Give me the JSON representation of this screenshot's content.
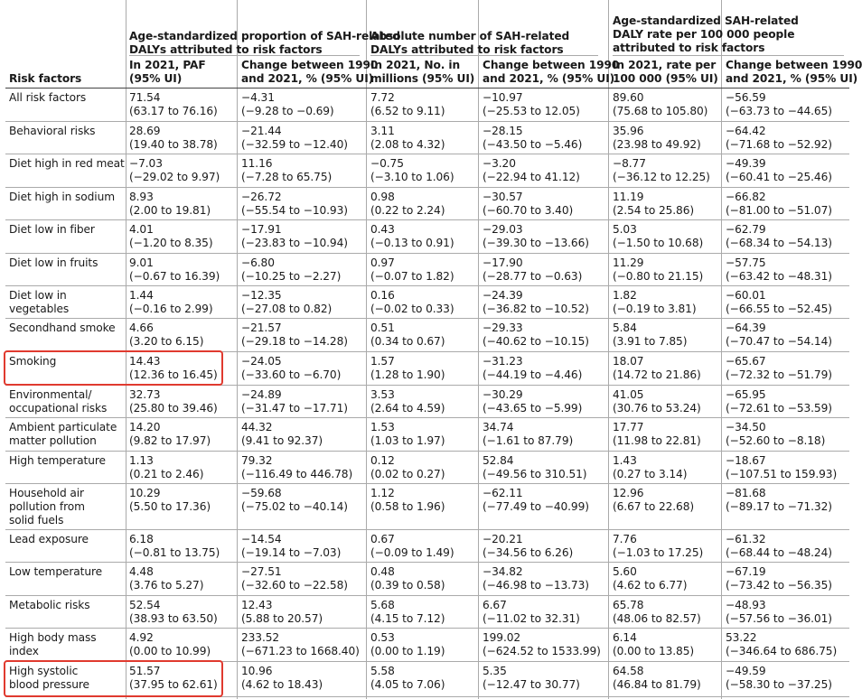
{
  "header": {
    "risk_factors": "Risk factors",
    "groups": [
      {
        "line1": "Age-standardized proportion of SAH-related",
        "line2": "DALYs attributed to risk factors",
        "line3": ""
      },
      {
        "line1": "Absolute number of SAH-related",
        "line2": "DALYs attributed to risk factors",
        "line3": ""
      },
      {
        "line1": "Age-standardized SAH-related",
        "line2": "DALY rate per 100 000 people",
        "line3": "attributed to risk factors"
      }
    ],
    "subs": [
      [
        "In 2021, PAF",
        "(95% UI)"
      ],
      [
        "Change between 1990",
        "and 2021, % (95% UI)"
      ],
      [
        "In 2021, No. in",
        "millions (95% UI)"
      ],
      [
        "Change between 1990",
        "and 2021, % (95% UI)"
      ],
      [
        "In 2021, rate per",
        "100 000 (95% UI)"
      ],
      [
        "Change between 1990",
        "and 2021, % (95% UI)"
      ]
    ]
  },
  "rows": [
    {
      "name": [
        "All risk factors"
      ],
      "cells": [
        [
          "71.54",
          "(63.17 to 76.16)"
        ],
        [
          "−4.31",
          "(−9.28 to −0.69)"
        ],
        [
          "7.72",
          "(6.52 to 9.11)"
        ],
        [
          "−10.97",
          "(−25.53 to 12.05)"
        ],
        [
          "89.60",
          "(75.68 to 105.80)"
        ],
        [
          "−56.59",
          "(−63.73 to −44.65)"
        ]
      ]
    },
    {
      "name": [
        "Behavioral risks"
      ],
      "cells": [
        [
          "28.69",
          "(19.40 to 38.78)"
        ],
        [
          "−21.44",
          "(−32.59 to −12.40)"
        ],
        [
          "3.11",
          "(2.08 to 4.32)"
        ],
        [
          "−28.15",
          "(−43.50 to −5.46)"
        ],
        [
          "35.96",
          "(23.98 to 49.92)"
        ],
        [
          "−64.42",
          "(−71.68 to −52.92)"
        ]
      ]
    },
    {
      "name": [
        "Diet high in red meat"
      ],
      "cells": [
        [
          "−7.03",
          "(−29.02 to 9.97)"
        ],
        [
          "11.16",
          "(−7.28 to 65.75)"
        ],
        [
          "−0.75",
          "(−3.10 to 1.06)"
        ],
        [
          "−3.20",
          "(−22.94 to 41.12)"
        ],
        [
          "−8.77",
          "(−36.12 to 12.25)"
        ],
        [
          "−49.39",
          "(−60.41 to −25.46)"
        ]
      ]
    },
    {
      "name": [
        "Diet high in sodium"
      ],
      "cells": [
        [
          "8.93",
          "(2.00 to 19.81)"
        ],
        [
          "−26.72",
          "(−55.54 to −10.93)"
        ],
        [
          "0.98",
          "(0.22 to 2.24)"
        ],
        [
          "−30.57",
          "(−60.70 to 3.40)"
        ],
        [
          "11.19",
          "(2.54 to 25.86)"
        ],
        [
          "−66.82",
          "(−81.00 to −51.07)"
        ]
      ]
    },
    {
      "name": [
        "Diet low in fiber"
      ],
      "cells": [
        [
          "4.01",
          "(−1.20 to 8.35)"
        ],
        [
          "−17.91",
          "(−23.83 to −10.94)"
        ],
        [
          "0.43",
          "(−0.13 to 0.91)"
        ],
        [
          "−29.03",
          "(−39.30 to −13.66)"
        ],
        [
          "5.03",
          "(−1.50 to 10.68)"
        ],
        [
          "−62.79",
          "(−68.34 to −54.13)"
        ]
      ]
    },
    {
      "name": [
        "Diet low in fruits"
      ],
      "cells": [
        [
          "9.01",
          "(−0.67 to 16.39)"
        ],
        [
          "−6.80",
          "(−10.25 to −2.27)"
        ],
        [
          "0.97",
          "(−0.07 to 1.82)"
        ],
        [
          "−17.90",
          "(−28.77 to −0.63)"
        ],
        [
          "11.29",
          "(−0.80 to 21.15)"
        ],
        [
          "−57.75",
          "(−63.42 to −48.31)"
        ]
      ]
    },
    {
      "name": [
        "Diet low in",
        "vegetables"
      ],
      "cells": [
        [
          "1.44",
          "(−0.16 to 2.99)"
        ],
        [
          "−12.35",
          "(−27.08 to 0.82)"
        ],
        [
          "0.16",
          "(−0.02 to 0.33)"
        ],
        [
          "−24.39",
          "(−36.82 to −10.52)"
        ],
        [
          "1.82",
          "(−0.19 to 3.81)"
        ],
        [
          "−60.01",
          "(−66.55 to −52.45)"
        ]
      ]
    },
    {
      "name": [
        "Secondhand smoke"
      ],
      "cells": [
        [
          "4.66",
          "(3.20 to 6.15)"
        ],
        [
          "−21.57",
          "(−29.18 to −14.28)"
        ],
        [
          "0.51",
          "(0.34 to 0.67)"
        ],
        [
          "−29.33",
          "(−40.62 to −10.15)"
        ],
        [
          "5.84",
          "(3.91 to 7.85)"
        ],
        [
          "−64.39",
          "(−70.47 to −54.14)"
        ]
      ]
    },
    {
      "name": [
        "Smoking"
      ],
      "highlight": true,
      "cells": [
        [
          "14.43",
          "(12.36 to 16.45)"
        ],
        [
          "−24.05",
          "(−33.60 to −6.70)"
        ],
        [
          "1.57",
          "(1.28 to 1.90)"
        ],
        [
          "−31.23",
          "(−44.19 to −4.46)"
        ],
        [
          "18.07",
          "(14.72 to 21.86)"
        ],
        [
          "−65.67",
          "(−72.32 to −51.79)"
        ]
      ]
    },
    {
      "name": [
        "Environmental/",
        "occupational risks"
      ],
      "cells": [
        [
          "32.73",
          "(25.80 to 39.46)"
        ],
        [
          "−24.89",
          "(−31.47 to −17.71)"
        ],
        [
          "3.53",
          "(2.64 to 4.59)"
        ],
        [
          "−30.29",
          "(−43.65 to −5.99)"
        ],
        [
          "41.05",
          "(30.76 to 53.24)"
        ],
        [
          "−65.95",
          "(−72.61 to −53.59)"
        ]
      ]
    },
    {
      "name": [
        "Ambient particulate",
        "matter pollution"
      ],
      "cells": [
        [
          "14.20",
          "(9.82 to 17.97)"
        ],
        [
          "44.32",
          "(9.41 to 92.37)"
        ],
        [
          "1.53",
          "(1.03 to 1.97)"
        ],
        [
          "34.74",
          "(−1.61 to 87.79)"
        ],
        [
          "17.77",
          "(11.98 to 22.81)"
        ],
        [
          "−34.50",
          "(−52.60 to −8.18)"
        ]
      ]
    },
    {
      "name": [
        "High temperature"
      ],
      "cells": [
        [
          "1.13",
          "(0.21 to 2.46)"
        ],
        [
          "79.32",
          "(−116.49 to 446.78)"
        ],
        [
          "0.12",
          "(0.02 to 0.27)"
        ],
        [
          "52.84",
          "(−49.56 to 310.51)"
        ],
        [
          "1.43",
          "(0.27 to 3.14)"
        ],
        [
          "−18.67",
          "(−107.51 to 159.93)"
        ]
      ]
    },
    {
      "name": [
        "Household air",
        "pollution from",
        "solid fuels"
      ],
      "cells": [
        [
          "10.29",
          "(5.50 to 17.36)"
        ],
        [
          "−59.68",
          "(−75.02 to −40.14)"
        ],
        [
          "1.12",
          "(0.58 to 1.96)"
        ],
        [
          "−62.11",
          "(−77.49 to −40.99)"
        ],
        [
          "12.96",
          "(6.67 to 22.68)"
        ],
        [
          "−81.68",
          "(−89.17 to −71.32)"
        ]
      ]
    },
    {
      "name": [
        "Lead exposure"
      ],
      "cells": [
        [
          "6.18",
          "(−0.81 to 13.75)"
        ],
        [
          "−14.54",
          "(−19.14 to −7.03)"
        ],
        [
          "0.67",
          "(−0.09 to 1.49)"
        ],
        [
          "−20.21",
          "(−34.56 to 6.26)"
        ],
        [
          "7.76",
          "(−1.03 to 17.25)"
        ],
        [
          "−61.32",
          "(−68.44 to −48.24)"
        ]
      ]
    },
    {
      "name": [
        "Low temperature"
      ],
      "cells": [
        [
          "4.48",
          "(3.76 to 5.27)"
        ],
        [
          "−27.51",
          "(−32.60 to −22.58)"
        ],
        [
          "0.48",
          "(0.39 to 0.58)"
        ],
        [
          "−34.82",
          "(−46.98 to −13.73)"
        ],
        [
          "5.60",
          "(4.62 to 6.77)"
        ],
        [
          "−67.19",
          "(−73.42 to −56.35)"
        ]
      ]
    },
    {
      "name": [
        "Metabolic risks"
      ],
      "cells": [
        [
          "52.54",
          "(38.93 to 63.50)"
        ],
        [
          "12.43",
          "(5.88 to 20.57)"
        ],
        [
          "5.68",
          "(4.15 to 7.12)"
        ],
        [
          "6.67",
          "(−11.02 to 32.31)"
        ],
        [
          "65.78",
          "(48.06 to 82.57)"
        ],
        [
          "−48.93",
          "(−57.56 to −36.01)"
        ]
      ]
    },
    {
      "name": [
        "High body mass",
        "index"
      ],
      "cells": [
        [
          "4.92",
          "(0.00 to 10.99)"
        ],
        [
          "233.52",
          "(−671.23 to 1668.40)"
        ],
        [
          "0.53",
          "(0.00 to 1.19)"
        ],
        [
          "199.02",
          "(−624.52 to 1533.99)"
        ],
        [
          "6.14",
          "(0.00 to 13.85)"
        ],
        [
          "53.22",
          "(−346.64 to 686.75)"
        ]
      ]
    },
    {
      "name": [
        "High systolic",
        "blood pressure"
      ],
      "highlight": true,
      "cells": [
        [
          "51.57",
          "(37.95 to 62.61)"
        ],
        [
          "10.96",
          "(4.62 to 18.43)"
        ],
        [
          "5.58",
          "(4.05 to 7.06)"
        ],
        [
          "5.35",
          "(−12.47 to 30.77)"
        ],
        [
          "64.58",
          "(46.84 to 81.79)"
        ],
        [
          "−49.59",
          "(−58.30 to −37.25)"
        ]
      ]
    }
  ],
  "colors": {
    "highlight": "#e03a2f",
    "rule": "#aaaaaa",
    "text": "#1a1a1a"
  }
}
